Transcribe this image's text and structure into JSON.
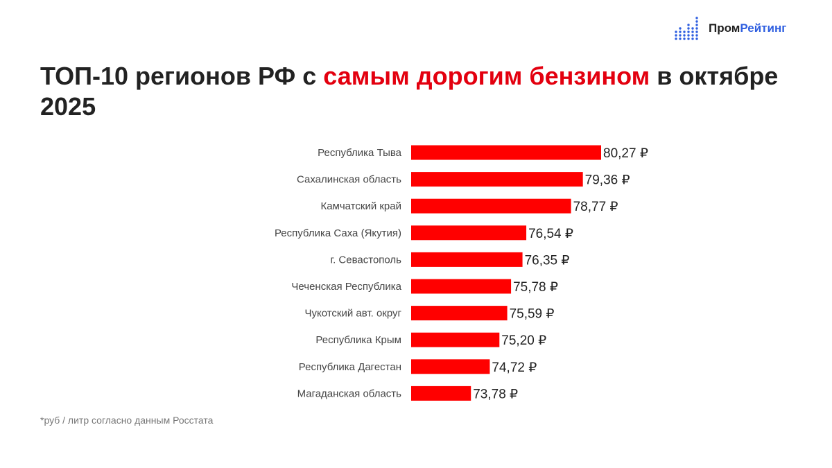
{
  "brand": {
    "prefix": "Пром",
    "accent": "Рейтинг",
    "accent_color": "#2f5fe0"
  },
  "title": {
    "part1": "ТОП-10 регионов РФ с ",
    "highlight": "самым дорогим бензином",
    "part2": " в октябре 2025",
    "highlight_color": "#e3000f"
  },
  "footnote": "*руб / литр согласно данным Росстата",
  "chart_data": {
    "type": "bar",
    "orientation": "horizontal",
    "categories": [
      "Республика Тыва",
      "Сахалинская область",
      "Камчатский край",
      "Республика Саха (Якутия)",
      "г. Севастополь",
      "Чеченская Республика",
      "Чукотский авт. округ",
      "Республика Крым",
      "Республика Дагестан",
      "Магаданская область"
    ],
    "values": [
      80.27,
      79.36,
      78.77,
      76.54,
      76.35,
      75.78,
      75.59,
      75.2,
      74.72,
      73.78
    ],
    "value_labels": [
      "80,27 ₽",
      "79,36 ₽",
      "78,77 ₽",
      "76,54 ₽",
      "76,35 ₽",
      "75,78 ₽",
      "75,59 ₽",
      "75,20 ₽",
      "74,72 ₽",
      "73,78 ₽"
    ],
    "bar_color": "#ff0000",
    "xlim": [
      70.8,
      80.27
    ],
    "grid": false,
    "legend": "none"
  }
}
